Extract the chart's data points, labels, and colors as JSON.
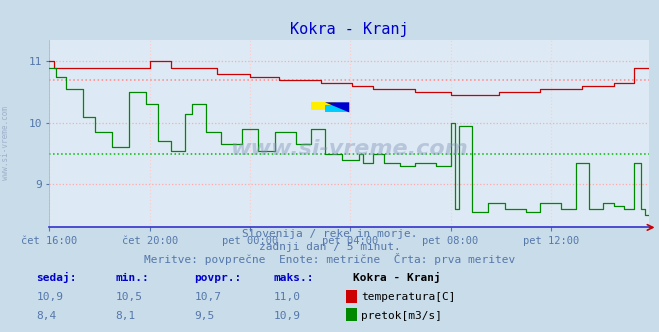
{
  "title": "Kokra - Kranj",
  "title_color": "#0000cc",
  "bg_color": "#c8dcea",
  "plot_bg_color": "#ddeaf5",
  "text_color": "#5577aa",
  "sidebar_text": "www.si-vreme.com",
  "watermark": "www.si-vreme.com",
  "xlim": [
    0,
    287
  ],
  "ylim": [
    8.3,
    11.35
  ],
  "yticks": [
    9,
    10,
    11
  ],
  "xtick_positions": [
    0,
    48,
    96,
    144,
    192,
    240
  ],
  "xtick_labels": [
    "čet 16:00",
    "čet 20:00",
    "pet 00:00",
    "pet 04:00",
    "pet 08:00",
    "pet 12:00"
  ],
  "temp_color": "#cc0000",
  "flow_color": "#008800",
  "avg_temp_color": "#ff8888",
  "avg_flow_color": "#00bb00",
  "hgrid_color": "#ffaaaa",
  "vgrid_color": "#ffcccc",
  "temp_avg": 10.7,
  "flow_avg": 9.5,
  "footer_line1": "Slovenija / reke in morje.",
  "footer_line2": "zadnji dan / 5 minut.",
  "footer_line3": "Meritve: povprečne  Enote: metrične  Črta: prva meritev",
  "table_headers": [
    "sedaj:",
    "min.:",
    "povpr.:",
    "maks.:"
  ],
  "table_temp_values": [
    "10,9",
    "10,5",
    "10,7",
    "11,0"
  ],
  "table_flow_values": [
    "8,4",
    "8,1",
    "9,5",
    "10,9"
  ],
  "legend_title": "Kokra - Kranj",
  "legend_temp_label": "temperatura[C]",
  "legend_flow_label": "pretok[m3/s]"
}
